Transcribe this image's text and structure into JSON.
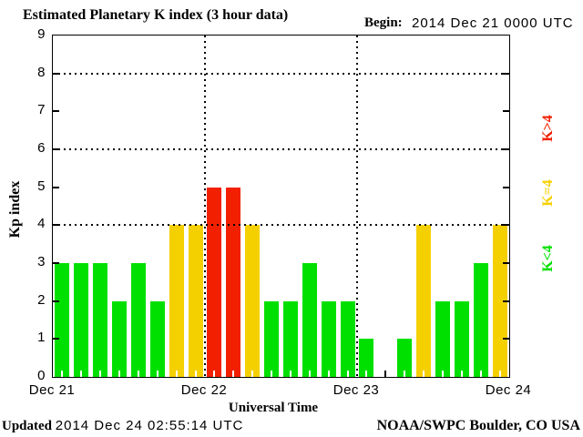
{
  "header": {
    "title": "Estimated Planetary K index (3 hour data)",
    "begin_label": "Begin:",
    "begin_value": "2014 Dec 21 0000 UTC"
  },
  "footer": {
    "updated_label": "Updated",
    "updated_value": "2014 Dec 24 02:55:14 UTC",
    "source": "NOAA/SWPC Boulder, CO USA"
  },
  "chart_data": {
    "type": "bar",
    "title": "Estimated Planetary K index (3 hour data)",
    "xlabel": "Universal Time",
    "ylabel": "Kp index",
    "ylim": [
      0,
      9
    ],
    "yticks": [
      0,
      1,
      2,
      3,
      4,
      5,
      6,
      7,
      8,
      9
    ],
    "gridlines_y": [
      4,
      6,
      8
    ],
    "grid": "dotted",
    "begin": "2014 Dec 21 0000 UTC",
    "interval_hours": 3,
    "bars_per_day": 8,
    "x_day_labels": [
      "Dec 21",
      "Dec 22",
      "Dec 23",
      "Dec 24"
    ],
    "values": [
      3,
      3,
      3,
      2,
      3,
      2,
      4,
      4,
      5,
      5,
      4,
      2,
      2,
      3,
      2,
      2,
      1,
      null,
      1,
      4,
      2,
      2,
      3,
      4
    ],
    "color_rule": {
      "low_below_4": "#00e000",
      "equal_4": "#f5d000",
      "high_above_4": "#f22000"
    },
    "legend": [
      {
        "label": "K>4",
        "color": "#f22000"
      },
      {
        "label": "K=4",
        "color": "#f5d000"
      },
      {
        "label": "K<4",
        "color": "#00e000"
      }
    ],
    "legend_position": "right"
  }
}
